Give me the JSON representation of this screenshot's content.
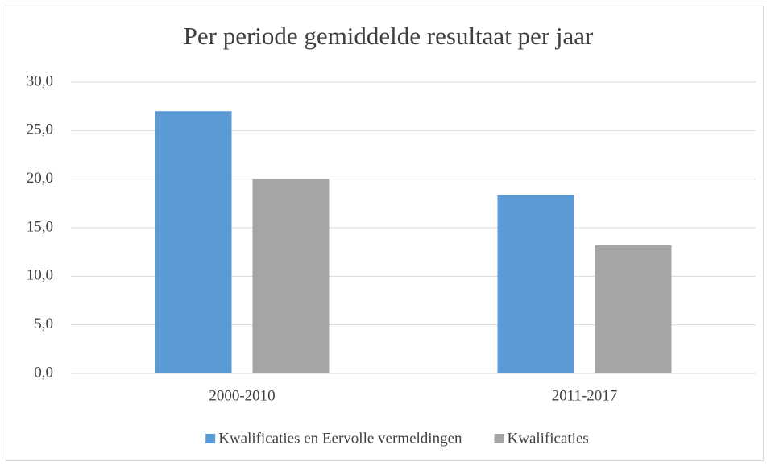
{
  "chart_data": {
    "type": "bar",
    "title": "Per periode gemiddelde resultaat per jaar",
    "categories": [
      "2000-2010",
      "2011-2017"
    ],
    "series": [
      {
        "name": "Kwalificaties en Eervolle vermeldingen",
        "color": "#5b9bd5",
        "values": [
          27.0,
          18.4
        ]
      },
      {
        "name": "Kwalificaties",
        "color": "#a5a5a5",
        "values": [
          20.0,
          13.2
        ]
      }
    ],
    "ylim": [
      0,
      30
    ],
    "yticks": [
      {
        "value": 0,
        "label": "0,0"
      },
      {
        "value": 5,
        "label": "5,0"
      },
      {
        "value": 10,
        "label": "10,0"
      },
      {
        "value": 15,
        "label": "15,0"
      },
      {
        "value": 20,
        "label": "20,0"
      },
      {
        "value": 25,
        "label": "25,0"
      },
      {
        "value": 30,
        "label": "30,0"
      }
    ],
    "grid": true,
    "legend": "bottom"
  }
}
